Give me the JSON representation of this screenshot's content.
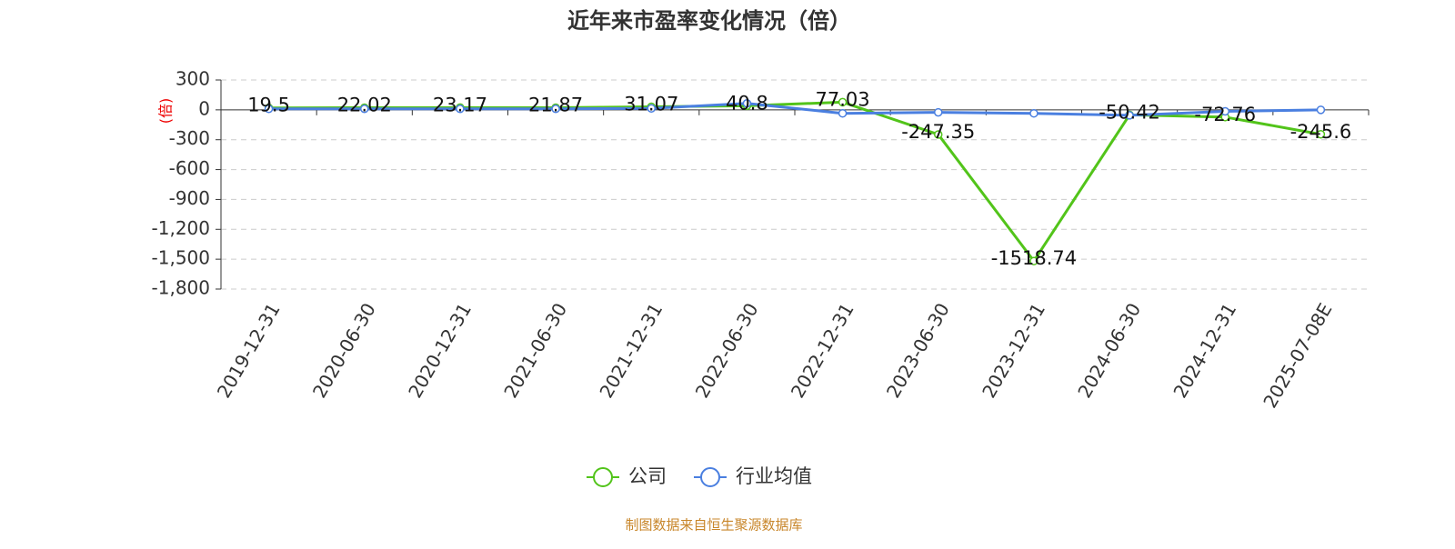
{
  "chart_data": {
    "type": "line",
    "title": "近年来市盈率变化情况（倍）",
    "y_label": "(倍)",
    "categories": [
      "2019-12-31",
      "2020-06-30",
      "2020-12-31",
      "2021-06-30",
      "2021-12-31",
      "2022-06-30",
      "2022-12-31",
      "2023-06-30",
      "2023-12-31",
      "2024-06-30",
      "2024-12-31",
      "2025-07-08E"
    ],
    "series": [
      {
        "name": "公司",
        "color": "#52c41a",
        "values": [
          19.5,
          22.02,
          23.17,
          21.87,
          31.07,
          40.8,
          77.03,
          -247.35,
          -1518.74,
          -50.42,
          -72.76,
          -245.6
        ]
      },
      {
        "name": "行业均值",
        "color": "#4a7fe0",
        "values": [
          10,
          10,
          10,
          10,
          15,
          65,
          -35,
          -25,
          -35,
          -55,
          -15,
          0
        ]
      }
    ],
    "ylim": [
      -1800,
      300
    ],
    "yticks": [
      {
        "value": -1800,
        "label": "-1,800"
      },
      {
        "value": -1500,
        "label": "-1,500"
      },
      {
        "value": -1200,
        "label": "-1,200"
      },
      -900,
      -600,
      -300,
      0,
      300
    ],
    "grid": true,
    "source": "制图数据来自恒生聚源数据库"
  }
}
